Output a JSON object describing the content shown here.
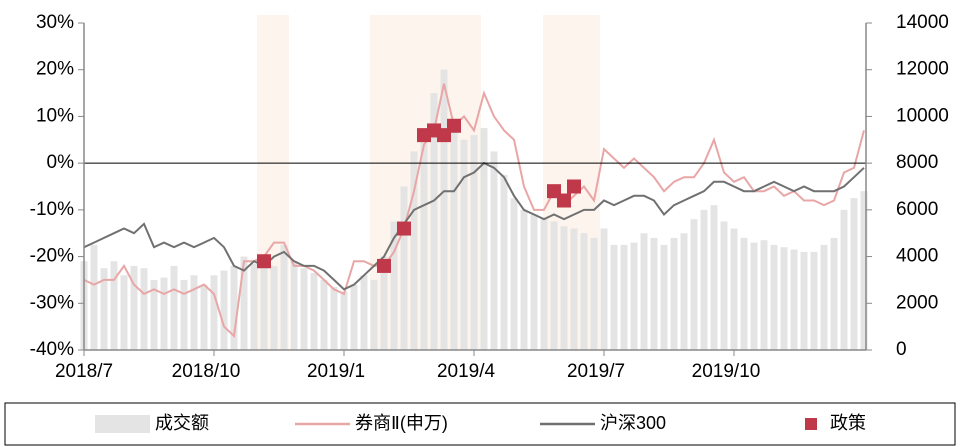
{
  "chart_data": {
    "type": "line",
    "categories": [
      "2018/7",
      null,
      null,
      null,
      null,
      null,
      null,
      null,
      null,
      null,
      null,
      null,
      null,
      "2018/10",
      null,
      null,
      null,
      null,
      null,
      null,
      null,
      null,
      null,
      null,
      null,
      null,
      "2019/1",
      null,
      null,
      null,
      null,
      null,
      null,
      null,
      null,
      null,
      null,
      null,
      null,
      "2019/4",
      null,
      null,
      null,
      null,
      null,
      null,
      null,
      null,
      null,
      null,
      null,
      null,
      "2019/7",
      null,
      null,
      null,
      null,
      null,
      null,
      null,
      null,
      null,
      null,
      null,
      null,
      "2019/10",
      null,
      null,
      null,
      null,
      null,
      null,
      null,
      null,
      null,
      null,
      null,
      null,
      null
    ],
    "ylim": [
      -40,
      30
    ],
    "yticks": [
      {
        "value": -40,
        "label": "-40%"
      },
      {
        "value": -30,
        "label": "-30%"
      },
      {
        "value": -20,
        "label": "-20%"
      },
      {
        "value": -10,
        "label": "-10%"
      },
      {
        "value": 0,
        "label": "0%"
      },
      {
        "value": 10,
        "label": "10%"
      },
      {
        "value": 20,
        "label": "20%"
      },
      {
        "value": 30,
        "label": "30%"
      }
    ],
    "y2lim": [
      0,
      14000
    ],
    "y2ticks": [
      0,
      2000,
      4000,
      6000,
      8000,
      10000,
      12000,
      14000
    ],
    "legend": "bottom",
    "series": [
      {
        "name": "成交额",
        "type": "bar",
        "axis": "y2",
        "color": "#e4e4e4",
        "values": [
          3800,
          4500,
          3500,
          3800,
          3200,
          3600,
          3500,
          3000,
          3100,
          3600,
          3000,
          3200,
          2800,
          3200,
          3400,
          3600,
          4000,
          3700,
          3500,
          3600,
          4500,
          3800,
          3500,
          3300,
          3000,
          2700,
          2500,
          2800,
          3200,
          3000,
          4000,
          5500,
          7000,
          8500,
          9000,
          11000,
          12000,
          9500,
          9000,
          9200,
          9500,
          8500,
          7500,
          6500,
          6000,
          5800,
          5600,
          5500,
          5300,
          5200,
          5000,
          4800,
          5200,
          4500,
          4500,
          4600,
          5000,
          4800,
          4500,
          4800,
          5000,
          5600,
          6000,
          6200,
          5500,
          5200,
          4800,
          4600,
          4700,
          4500,
          4400,
          4300,
          4200,
          4200,
          4500,
          4800,
          6000,
          6500,
          6800
        ]
      },
      {
        "name": "券商Ⅱ(申万)",
        "type": "line",
        "color": "#e8a6a6",
        "values": [
          -25,
          -26,
          -25,
          -25,
          -22,
          -26,
          -28,
          -27,
          -28,
          -27,
          -28,
          -27,
          -26,
          -28,
          -35,
          -37,
          -21,
          -21,
          -20,
          -17,
          -17,
          -22,
          -22,
          -23,
          -25,
          -27,
          -28,
          -21,
          -21,
          -22,
          -22,
          -19,
          -14,
          -6,
          4,
          7,
          17,
          8,
          10,
          7,
          15,
          10,
          7,
          5,
          -5,
          -10,
          -10,
          -6,
          -9,
          -7,
          -5,
          -8,
          3,
          1,
          -1,
          1,
          -1,
          -3,
          -6,
          -4,
          -3,
          -3,
          0,
          5,
          -2,
          -4,
          -3,
          -6,
          -6,
          -5,
          -7,
          -6,
          -8,
          -8,
          -9,
          -8,
          -2,
          -1,
          7
        ]
      },
      {
        "name": "沪深300",
        "type": "line",
        "color": "#707070",
        "values": [
          -18,
          -17,
          -16,
          -15,
          -14,
          -15,
          -13,
          -18,
          -17,
          -18,
          -17,
          -18,
          -17,
          -16,
          -18,
          -22,
          -23,
          -21,
          -22,
          -20,
          -19,
          -21,
          -22,
          -22,
          -23,
          -25,
          -27,
          -26,
          -24,
          -22,
          -20,
          -16,
          -13,
          -10,
          -9,
          -8,
          -6,
          -6,
          -3,
          -2,
          0,
          -1,
          -3,
          -7,
          -10,
          -11,
          -12,
          -11,
          -12,
          -11,
          -10,
          -10,
          -8,
          -9,
          -8,
          -7,
          -7,
          -8,
          -11,
          -9,
          -8,
          -7,
          -6,
          -4,
          -4,
          -5,
          -6,
          -6,
          -5,
          -4,
          -5,
          -6,
          -5,
          -6,
          -6,
          -6,
          -5,
          -3,
          -1
        ]
      },
      {
        "name": "政策",
        "type": "scatter",
        "color": "#c0394a",
        "values": [
          null,
          null,
          null,
          null,
          null,
          null,
          null,
          null,
          null,
          null,
          null,
          null,
          null,
          null,
          null,
          null,
          null,
          null,
          -21,
          null,
          null,
          null,
          null,
          null,
          null,
          null,
          null,
          null,
          null,
          null,
          -22,
          null,
          -14,
          null,
          6,
          7,
          6,
          8,
          null,
          null,
          null,
          null,
          null,
          null,
          null,
          null,
          null,
          -6,
          -8,
          -5,
          null,
          null,
          null,
          null,
          null,
          null,
          null,
          null,
          null,
          null,
          null,
          null,
          null,
          null,
          null,
          null,
          null,
          null,
          null,
          null,
          null,
          null,
          null,
          null,
          null,
          null,
          null,
          null,
          null
        ]
      }
    ]
  }
}
